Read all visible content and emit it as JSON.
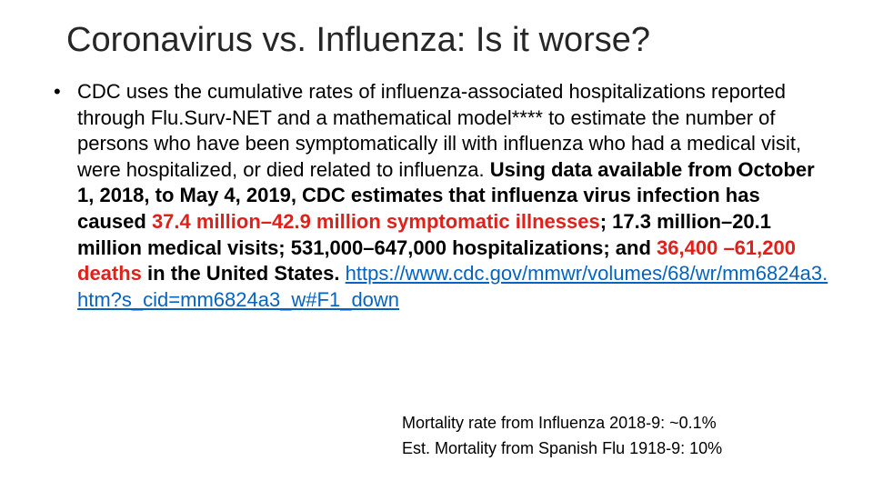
{
  "title": "Coronavirus vs. Influenza: Is it worse?",
  "bullet": {
    "marker": "•",
    "intro": "CDC uses the cumulative rates of influenza-associated hospitalizations reported through Flu.Surv-NET and a mathematical model**** to estimate the number of persons who have been symptomatically ill with influenza who had a medical visit, were hospitalized, or died related to influenza. ",
    "bold_intro": "Using data available from October 1, 2018, to May 4, 2019, CDC estimates that influenza virus infection has caused ",
    "illnesses_highlight": "37.4 million–42.9 million symptomatic illnesses",
    "visits_text": "; 17.3 million–20.1 million medical visits; 531,000–647,000 hospitalizations; and ",
    "deaths_highlight": "36,400 –61,200 deaths",
    "closing": " in the United States.",
    "link_text": "https://www.cdc.gov/mmwr/volumes/68/wr/mm6824a3.htm?s_cid=mm6824a3_w#F1_down"
  },
  "note": {
    "line1": "Mortality rate from Influenza 2018-9:  ~0.1%",
    "line2": "Est. Mortality from Spanish Flu 1918-9:  10%"
  },
  "colors": {
    "title": "#262626",
    "highlight": "#e0201b",
    "link": "#0563c1"
  }
}
